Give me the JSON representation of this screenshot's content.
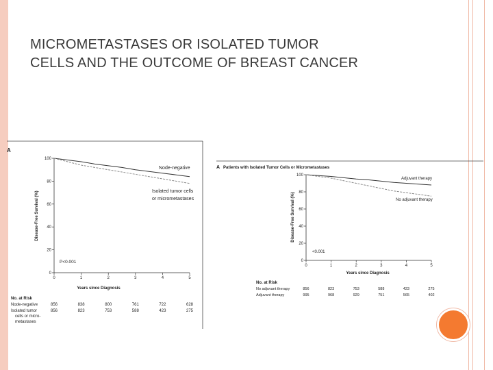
{
  "slide": {
    "title_line1": "MICROMETASTASES OR ISOLATED TUMOR",
    "title_line2": "CELLS AND THE OUTCOME OF BREAST CANCER",
    "colors": {
      "border": "#f6cdbf",
      "accent_line": "#f0b8a4",
      "circle": "#f47a30"
    }
  },
  "chart_data": [
    {
      "type": "line",
      "panel_label": "A",
      "title": "",
      "xlabel": "Years since Diagnosis",
      "ylabel": "Disease-Free Survival (%)",
      "xlim": [
        0,
        5
      ],
      "ylim": [
        0,
        100
      ],
      "xticks": [
        "0",
        "1",
        "2",
        "3",
        "4",
        "5"
      ],
      "yticks": [
        "0",
        "20",
        "40",
        "60",
        "80",
        "100"
      ],
      "pvalue": "P<0.001",
      "series": [
        {
          "name": "Node-negative",
          "style": "solid",
          "x": [
            0,
            0.5,
            1,
            1.5,
            2,
            2.5,
            3,
            3.5,
            4,
            4.5,
            5
          ],
          "y": [
            100,
            98.5,
            97,
            95,
            93.5,
            92,
            90,
            88.5,
            87,
            85.5,
            84
          ]
        },
        {
          "name": "Isolated tumor cells or micrometastases",
          "style": "dashed",
          "x": [
            0,
            0.5,
            1,
            1.5,
            2,
            2.5,
            3,
            3.5,
            4,
            4.5,
            5
          ],
          "y": [
            100,
            97,
            94,
            92,
            90,
            88,
            86,
            84,
            82,
            80,
            78
          ]
        }
      ],
      "risk_table": {
        "header": "No. at Risk",
        "columns": [
          0,
          1,
          2,
          3,
          4,
          5
        ],
        "rows": [
          {
            "label": "Node-negative",
            "values": [
              "856",
              "838",
              "800",
              "761",
              "722",
              "628"
            ]
          },
          {
            "label_lines": [
              "Isolated tumor",
              "cells or micro-",
              "metastases"
            ],
            "values": [
              "856",
              "823",
              "753",
              "588",
              "423",
              "275"
            ]
          }
        ]
      }
    },
    {
      "type": "line",
      "panel_label": "A",
      "title": "Patients with Isolated Tumor Cells or Micrometastases",
      "xlabel": "Years since Diagnosis",
      "ylabel": "Disease-Free Survival (%)",
      "xlim": [
        0,
        5
      ],
      "ylim": [
        0,
        100
      ],
      "xticks": [
        "0",
        "1",
        "2",
        "3",
        "4",
        "5"
      ],
      "yticks": [
        "0",
        "20",
        "40",
        "60",
        "80",
        "100"
      ],
      "pvalue": "<0.001",
      "series": [
        {
          "name": "Adjuvant therapy",
          "style": "solid",
          "x": [
            0,
            0.5,
            1,
            1.5,
            2,
            2.5,
            3,
            3.5,
            4,
            4.5,
            5
          ],
          "y": [
            100,
            99,
            98,
            96.5,
            95,
            94,
            92.5,
            91,
            90,
            89,
            88
          ]
        },
        {
          "name": "No adjuvant therapy",
          "style": "dashed",
          "x": [
            0,
            0.5,
            1,
            1.5,
            2,
            2.5,
            3,
            3.5,
            4,
            4.5,
            5
          ],
          "y": [
            100,
            98,
            96,
            93,
            90,
            87,
            84,
            81,
            79,
            77,
            75
          ]
        }
      ],
      "risk_table": {
        "header": "No. at Risk",
        "columns": [
          0,
          1,
          2,
          3,
          4,
          5
        ],
        "rows": [
          {
            "label": "No adjuvant therapy",
            "values": [
              "856",
              "823",
              "753",
              "588",
              "423",
              "275"
            ]
          },
          {
            "label": "Adjuvant therapy",
            "values": [
              "995",
              "968",
              "929",
              "751",
              "565",
              "402"
            ]
          }
        ]
      }
    }
  ]
}
